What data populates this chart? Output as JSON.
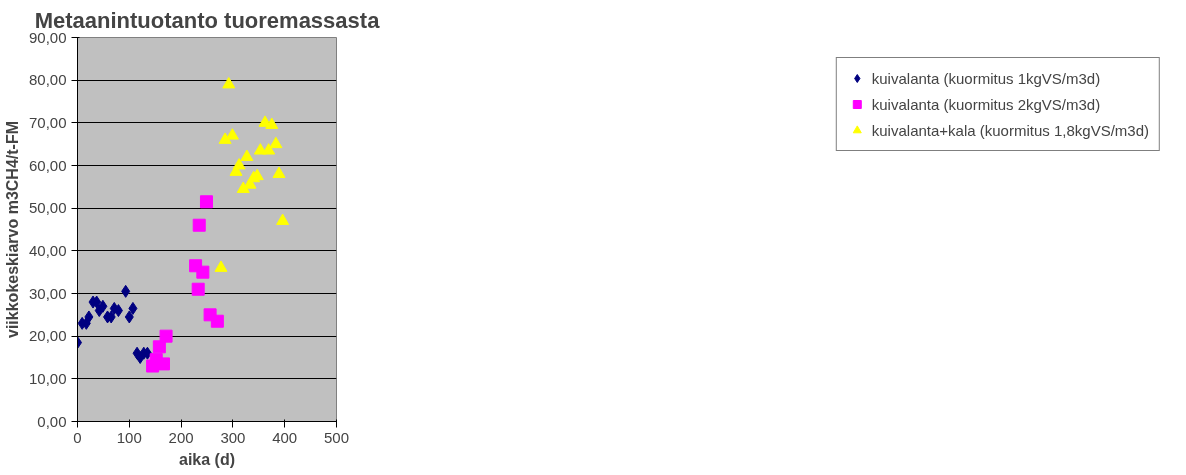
{
  "chart_data": {
    "type": "scatter",
    "title": "Metaanintuotanto tuoremassasta",
    "xlabel": "aika (d)",
    "ylabel": "viikkokeskiarvo m3CH4/t-FM",
    "xlim": [
      0,
      500
    ],
    "xticks": [
      0,
      100,
      200,
      300,
      400,
      500
    ],
    "ylim": [
      0,
      90
    ],
    "yticks": [
      {
        "value": 0,
        "label": "0,00"
      },
      {
        "value": 10,
        "label": "10,00"
      },
      {
        "value": 20,
        "label": "20,00"
      },
      {
        "value": 30,
        "label": "30,00"
      },
      {
        "value": 40,
        "label": "40,00"
      },
      {
        "value": 50,
        "label": "50,00"
      },
      {
        "value": 60,
        "label": "60,00"
      },
      {
        "value": 70,
        "label": "70,00"
      },
      {
        "value": 80,
        "label": "80,00"
      },
      {
        "value": 90,
        "label": "90,00"
      }
    ],
    "grid": "y",
    "legend": "right",
    "series": [
      {
        "name": "kuivalanta (kuormitus 1kgVS/m3d)",
        "color": "#000080",
        "marker": "diamond",
        "x": [
          0,
          9,
          17,
          22,
          30,
          37,
          42,
          49,
          58,
          65,
          71,
          79,
          93,
          100,
          107,
          115,
          121,
          128,
          135
        ],
        "values": [
          18.5,
          23,
          23,
          24.5,
          28,
          28,
          26,
          27,
          24.5,
          24.5,
          26.5,
          26,
          30.5,
          24.5,
          26.5,
          16,
          15,
          16,
          16
        ]
      },
      {
        "name": "kuivalanta (kuormitus 2kgVS/m3d)",
        "color": "#ff00ff",
        "marker": "square",
        "x": [
          145,
          152,
          158,
          166,
          171,
          228,
          233,
          235,
          242,
          249,
          256,
          270
        ],
        "values": [
          13,
          14.5,
          17.5,
          13.5,
          20,
          36.5,
          31,
          46,
          35,
          51.5,
          25,
          23.5
        ]
      },
      {
        "name": "kuivalanta+kala (kuormitus 1,8kgVS/m3d)",
        "color": "#ffff00",
        "marker": "triangle",
        "x": [
          277,
          285,
          292,
          299,
          306,
          312,
          320,
          327,
          333,
          340,
          347,
          353,
          362,
          369,
          375,
          383,
          389,
          396
        ],
        "values": [
          36,
          66,
          79,
          67,
          58.5,
          60,
          54.5,
          62,
          55.5,
          57,
          57.5,
          63.5,
          70,
          63.5,
          69.5,
          65,
          58,
          47
        ]
      }
    ]
  }
}
